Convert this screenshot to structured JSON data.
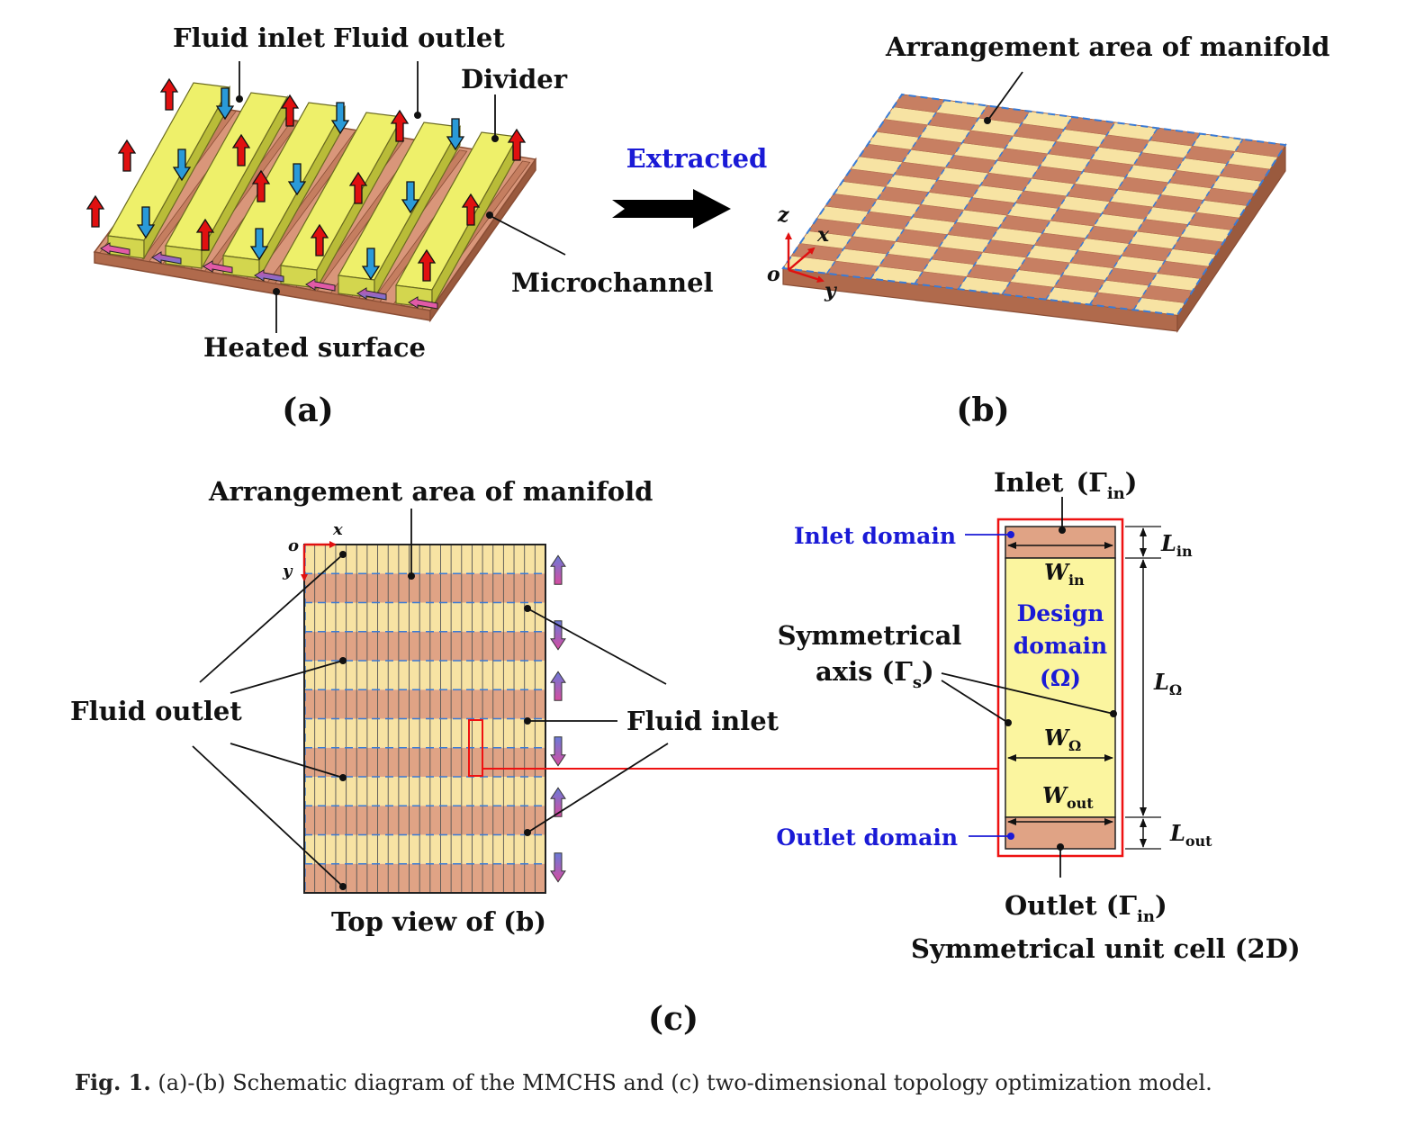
{
  "panel_a": {
    "fluid_inlet": "Fluid inlet",
    "fluid_outlet": "Fluid outlet",
    "divider": "Divider",
    "microchannel": "Microchannel",
    "heated_surface": "Heated surface",
    "tag": "(a)"
  },
  "arrow_label": "Extracted",
  "panel_b": {
    "arrangement": "Arrangement area of manifold",
    "axis_z": "z",
    "axis_x": "x",
    "axis_o": "o",
    "axis_y": "y",
    "tag": "(b)"
  },
  "panel_c": {
    "arrangement": "Arrangement area of manifold",
    "axis_o": "o",
    "axis_x": "x",
    "axis_y": "y",
    "fluid_outlet": "Fluid outlet",
    "fluid_inlet": "Fluid inlet",
    "top_view": "Top view of (b)",
    "tag": "(c)"
  },
  "unit_cell": {
    "inlet_title": "Inlet",
    "inlet_gamma": "(Γ",
    "inlet_sub": "in",
    "inlet_close": ")",
    "inlet_domain": "Inlet domain",
    "outlet_domain": "Outlet domain",
    "symmetrical": "Symmetrical",
    "axis_label": "axis (Γ",
    "axis_sub": "s",
    "axis_close": ")",
    "w_in": "W",
    "w_in_sub": "in",
    "design": "Design",
    "domain": "domain",
    "omega": "(Ω)",
    "w_omega": "W",
    "w_omega_sub": "Ω",
    "w_out": "W",
    "w_out_sub": "out",
    "l_in": "L",
    "l_in_sub": "in",
    "l_omega": "L",
    "l_omega_sub": "Ω",
    "l_out": "L",
    "l_out_sub": "out",
    "outlet_title": "Outlet (Γ",
    "outlet_sub": "in",
    "outlet_close": ")",
    "cell_title": "Symmetrical unit cell (2D)"
  },
  "caption": {
    "label": "Fig. 1.",
    "text": "(a)-(b) Schematic diagram of the MMCHS and (c) two-dimensional topology optimization model."
  },
  "colors": {
    "copper": "#d9967a",
    "copper_dark": "#b06a4c",
    "divider_yellow": "#eef06a",
    "manifold_light": "#f7e3a3",
    "dash_blue": "#3a7bd5",
    "arrow_red": "#e01010",
    "arrow_blue": "#2a9ad8",
    "highlight_red": "#ee1111",
    "label_blue": "#1a1ad6"
  }
}
